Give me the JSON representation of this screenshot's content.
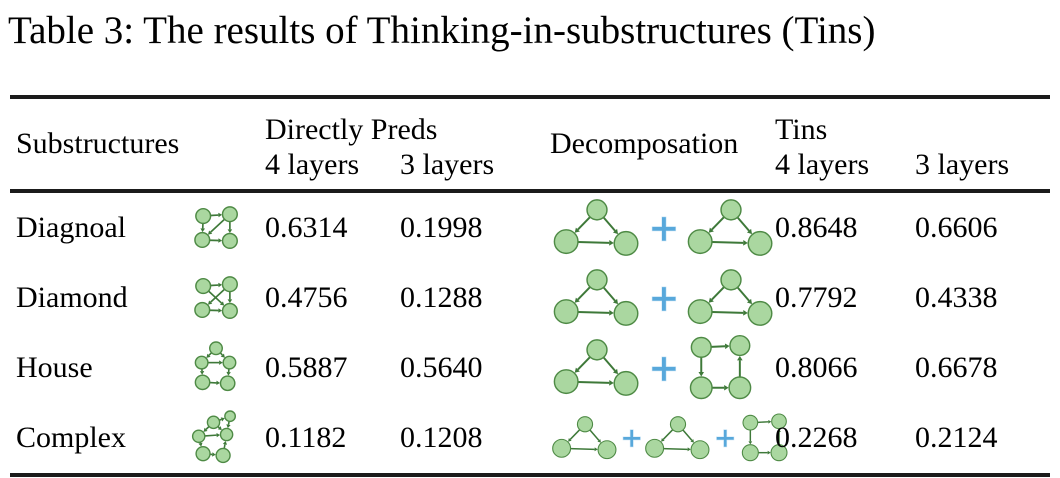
{
  "caption": "Table 3: The results of Thinking-in-substructures (Tins)",
  "colors": {
    "node_fill": "#aad7a0",
    "node_stroke": "#4e8a45",
    "edge": "#3e7939",
    "plus": "#58a8db",
    "rule": "#1b1b1b"
  },
  "plus_symbol": "+",
  "header": {
    "substructures": "Substructures",
    "directly_preds": "Directly Preds",
    "decomposition": "Decomposation",
    "tins": "Tins",
    "layers_4": "4 layers",
    "layers_3": "3 layers"
  },
  "rows": [
    {
      "name": "Diagnoal",
      "icon": "diagonal-graph-icon",
      "directly_preds_4layers": "0.6314",
      "directly_preds_3layers": "0.1998",
      "decomposition": [
        "triangle-graph-icon",
        "triangle-graph-icon"
      ],
      "tins_4layers": "0.8648",
      "tins_3layers": "0.6606"
    },
    {
      "name": "Diamond",
      "icon": "diamond-graph-icon",
      "directly_preds_4layers": "0.4756",
      "directly_preds_3layers": "0.1288",
      "decomposition": [
        "triangle-graph-icon",
        "triangle-graph-icon"
      ],
      "tins_4layers": "0.7792",
      "tins_3layers": "0.4338"
    },
    {
      "name": "House",
      "icon": "house-graph-icon",
      "directly_preds_4layers": "0.5887",
      "directly_preds_3layers": "0.5640",
      "decomposition": [
        "triangle-graph-icon",
        "square-graph-icon"
      ],
      "tins_4layers": "0.8066",
      "tins_3layers": "0.6678"
    },
    {
      "name": "Complex",
      "icon": "complex-graph-icon",
      "directly_preds_4layers": "0.1182",
      "directly_preds_3layers": "0.1208",
      "decomposition": [
        "triangle-graph-icon",
        "triangle-graph-icon",
        "square-graph-icon"
      ],
      "tins_4layers": "0.2268",
      "tins_3layers": "0.2124"
    }
  ]
}
